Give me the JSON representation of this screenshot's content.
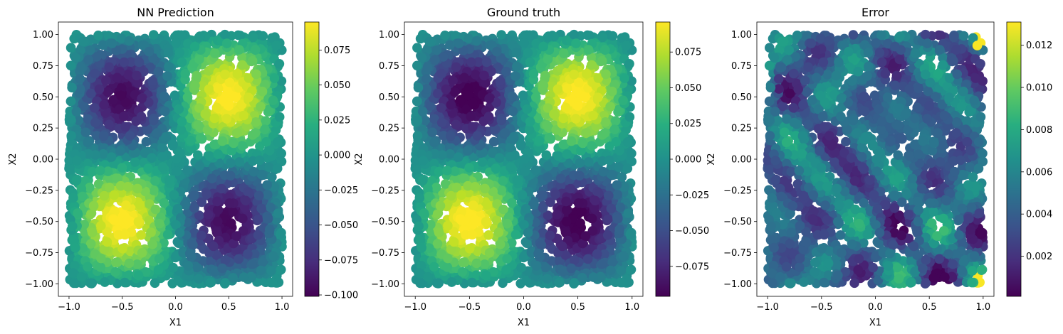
{
  "chart_data": [
    {
      "type": "heatmap",
      "title": "NN Prediction",
      "xlabel": "X1",
      "ylabel": "X2",
      "xlim": [
        -1.1,
        1.1
      ],
      "ylim": [
        -1.1,
        1.1
      ],
      "x_ticks": [
        "−1.0",
        "−0.5",
        "0.0",
        "0.5",
        "1.0"
      ],
      "y_ticks": [
        "−1.00",
        "−0.75",
        "−0.50",
        "−0.25",
        "0.00",
        "0.25",
        "0.50",
        "0.75",
        "1.00"
      ],
      "colormap": "viridis",
      "colorbar_range": [
        -0.101,
        0.095
      ],
      "colorbar_ticks": [
        "−0.100",
        "−0.075",
        "−0.050",
        "−0.025",
        "0.000",
        "0.025",
        "0.050",
        "0.075"
      ],
      "function": "0.1*sin(pi*X1)*sin(pi*X2)"
    },
    {
      "type": "heatmap",
      "title": "Ground truth",
      "xlabel": "X1",
      "ylabel": "X2",
      "xlim": [
        -1.1,
        1.1
      ],
      "ylim": [
        -1.1,
        1.1
      ],
      "x_ticks": [
        "−1.0",
        "−0.5",
        "0.0",
        "0.5",
        "1.0"
      ],
      "y_ticks": [
        "−1.00",
        "−0.75",
        "−0.50",
        "−0.25",
        "0.00",
        "0.25",
        "0.50",
        "0.75",
        "1.00"
      ],
      "colormap": "viridis",
      "colorbar_range": [
        -0.096,
        0.096
      ],
      "colorbar_ticks": [
        "−0.075",
        "−0.050",
        "−0.025",
        "0.000",
        "0.025",
        "0.050",
        "0.075"
      ],
      "function": "0.1*sin(pi*X1)*sin(pi*X2)"
    },
    {
      "type": "heatmap",
      "title": "Error",
      "xlabel": "X1",
      "ylabel": "X2",
      "xlim": [
        -1.1,
        1.1
      ],
      "ylim": [
        -1.1,
        1.1
      ],
      "x_ticks": [
        "−1.0",
        "−0.5",
        "0.0",
        "0.5",
        "1.0"
      ],
      "y_ticks": [
        "−1.00",
        "−0.75",
        "−0.50",
        "−0.25",
        "0.00",
        "0.25",
        "0.50",
        "0.75",
        "1.00"
      ],
      "colormap": "viridis",
      "colorbar_range": [
        0.0001,
        0.0131
      ],
      "colorbar_ticks": [
        "0.002",
        "0.004",
        "0.006",
        "0.008",
        "0.010",
        "0.012"
      ],
      "function": "absolute difference (small oscillating pattern)"
    }
  ]
}
